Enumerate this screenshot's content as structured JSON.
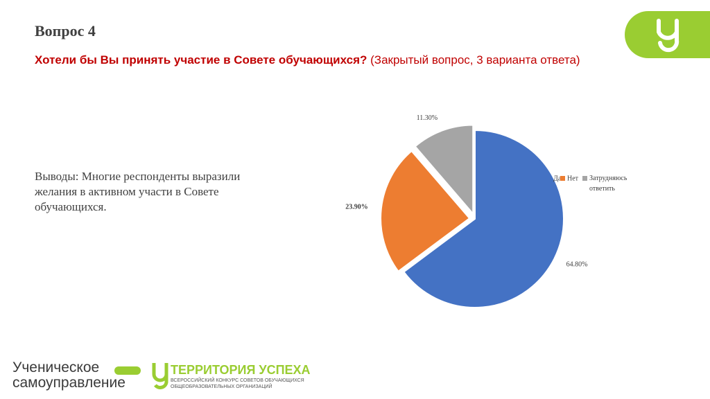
{
  "slide": {
    "heading": "Вопрос 4",
    "question_bold": "Хотели бы Вы принять участие в Совете обучающихся?",
    "question_rest": "(Закрытый вопрос, 3 варианта ответа)",
    "conclusion": "Выводы: Многие респонденты выразили желания в активном участи в Совете обучающихся.",
    "logo_left_line1": "Ученическое",
    "logo_left_line2": "самоуправление",
    "logo_right_title": "ТЕРРИТОРИЯ УСПЕХА",
    "logo_right_line1": "ВСЕРОССИЙСКИЙ КОНКУРС СОВЕТОВ ОБУЧАЮЩИХСЯ",
    "logo_right_line2": "ОБЩЕОБРАЗОВАТЕЛЬНЫХ ОРГАНИЗАЦИЙ"
  },
  "chart_data": {
    "type": "pie",
    "categories": [
      "Да",
      "Нет",
      "Затрудняюсь ответить"
    ],
    "values": [
      64.8,
      23.9,
      11.3
    ],
    "value_labels": [
      "64.80%",
      "23.90%",
      "11.30%"
    ],
    "colors": [
      "#4472c4",
      "#ed7d31",
      "#a5a5a5"
    ]
  }
}
